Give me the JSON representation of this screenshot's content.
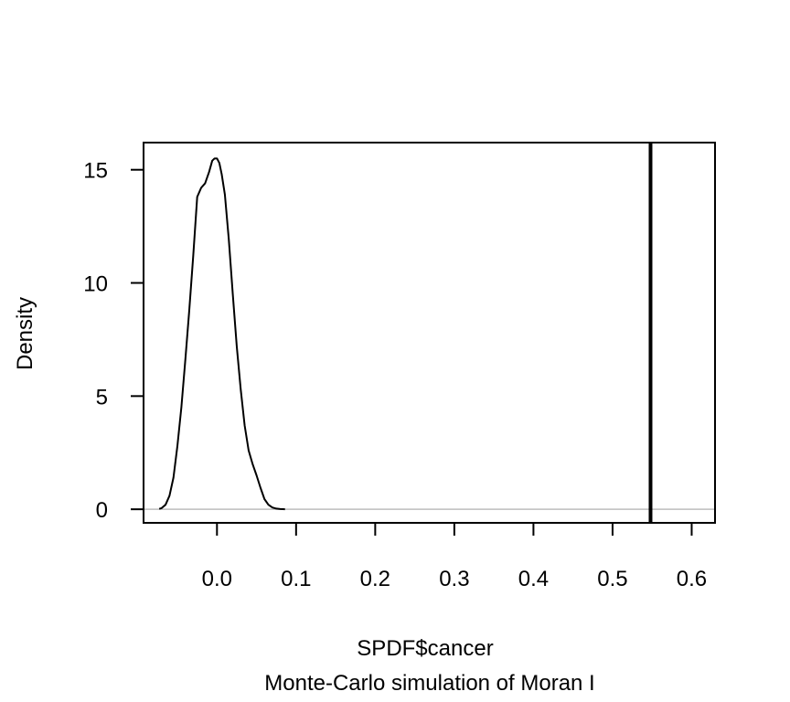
{
  "chart_data": {
    "type": "line",
    "xlabel": "SPDF$cancer",
    "subtitle": "Monte-Carlo simulation of Moran I",
    "ylabel": "Density",
    "xlim": [
      -0.0928,
      0.6295
    ],
    "ylim": [
      -0.6,
      16.2
    ],
    "x_ticks": [
      0.0,
      0.1,
      0.2,
      0.3,
      0.4,
      0.5,
      0.6
    ],
    "x_tick_labels": [
      "0.0",
      "0.1",
      "0.2",
      "0.3",
      "0.4",
      "0.5",
      "0.6"
    ],
    "y_ticks": [
      0,
      5,
      10,
      15
    ],
    "y_tick_labels": [
      "0",
      "5",
      "10",
      "15"
    ],
    "grid": false,
    "colors": {
      "density_line": "#000000",
      "baseline": "#bebebe",
      "observed_line": "#000000",
      "frame": "#000000"
    },
    "baseline_y": 0,
    "observed_value": 0.548,
    "series": [
      {
        "x": [
          -0.073,
          -0.07,
          -0.065,
          -0.06,
          -0.055,
          -0.05,
          -0.045,
          -0.04,
          -0.035,
          -0.03,
          -0.025,
          -0.02,
          -0.015,
          -0.01,
          -0.006,
          -0.003,
          0.0,
          0.003,
          0.006,
          0.01,
          0.015,
          0.02,
          0.025,
          0.03,
          0.035,
          0.04,
          0.045,
          0.05,
          0.055,
          0.06,
          0.065,
          0.07,
          0.075,
          0.08,
          0.086
        ],
        "y": [
          0.02,
          0.05,
          0.2,
          0.6,
          1.4,
          2.8,
          4.5,
          6.6,
          8.8,
          11.2,
          13.8,
          14.2,
          14.4,
          14.9,
          15.4,
          15.5,
          15.5,
          15.3,
          14.8,
          13.9,
          11.9,
          9.5,
          7.2,
          5.3,
          3.7,
          2.6,
          2.0,
          1.5,
          0.95,
          0.45,
          0.2,
          0.08,
          0.03,
          0.01,
          0.0
        ]
      }
    ]
  }
}
